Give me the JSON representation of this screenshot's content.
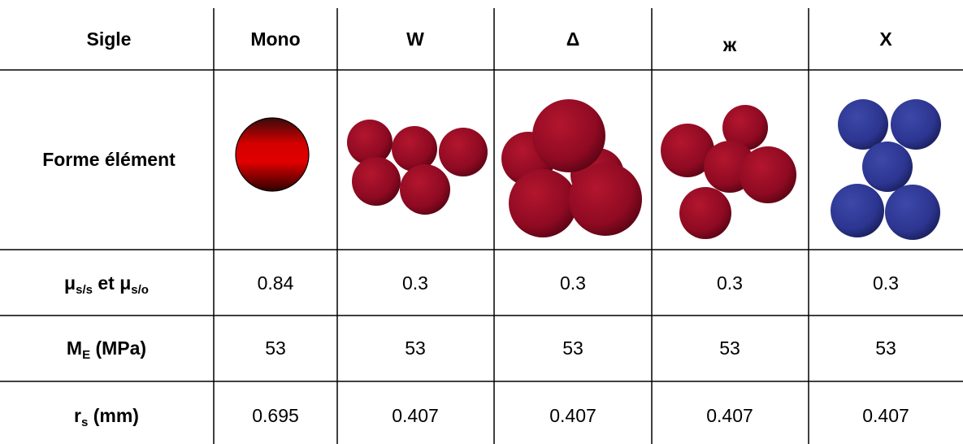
{
  "table": {
    "header": [
      "Sigle",
      "Mono",
      "W",
      "Δ",
      "ж",
      "X"
    ],
    "rows": [
      {
        "label": "Forme élément"
      },
      {
        "label": [
          "μ",
          "s/s",
          " et μ",
          "s/o"
        ],
        "values": [
          0.84,
          0.3,
          0.3,
          0.3,
          0.3
        ]
      },
      {
        "label": [
          "M",
          "E",
          " (MPa)"
        ],
        "values": [
          53,
          53,
          53,
          53,
          53
        ]
      },
      {
        "label": [
          "r",
          "s",
          " (mm)"
        ],
        "values": [
          0.695,
          0.407,
          0.407,
          0.407,
          0.407
        ]
      }
    ]
  }
}
